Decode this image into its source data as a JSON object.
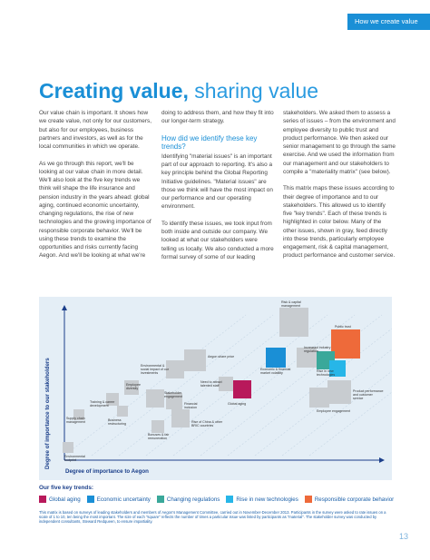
{
  "header": {
    "section": "How we create value"
  },
  "title": {
    "bold": "Creating value,",
    "light": "sharing value"
  },
  "col1": {
    "p1": "Our value chain is important. It shows how we create value, not only for our customers, but also for our employees, business partners and investors, as well as for the local communities in which we operate.",
    "p2": "As we go through this report, we'll be looking at our value chain in more detail. We'll also look at the five key trends we think will shape the life insurance and pension industry in the years ahead: global aging, continued economic uncertainty, changing regulations, the rise of new technologies and the growing importance of responsible corporate behavior. We'll be using these trends to examine the opportunities and risks currently facing Aegon. And we'll be looking at what we're"
  },
  "col2": {
    "p1": "doing to address them, and how they fit into our longer-term strategy.",
    "heading": "How did we identify these key trends?",
    "p2": "Identifying \"material issues\" is an important part of our approach to reporting. It's also a key principle behind the Global Reporting Initiative guidelines. \"Material issues\" are those we think will have the most impact on our performance and our operating environment.",
    "p3": "To identify these issues, we took input from both inside and outside our company. We looked at what our stakeholders were telling us locally. We also conducted a more formal survey of some of our leading"
  },
  "col3": {
    "p1": "stakeholders. We asked them to assess a series of issues – from the environment and employee diversity to public trust and product performance. We then asked our senior management to go through the same exercise. And we used the information from our management and our stakeholders to compile a \"materiality matrix\" (see below).",
    "p2": "This matrix maps these issues according to their degree of importance and to our stakeholders. This allowed us to identify five \"key trends\". Each of these trends is highlighted in color below. Many of the other issues, shown in gray, feed directly into these trends, particularly employee engagement, risk & capital management, product performance and customer service."
  },
  "matrix": {
    "y_axis_label": "Degree of importance to our stakeholders",
    "x_axis_label": "Degree of importance to Aegon",
    "labels": {
      "risk_capital": "Risk & capital management",
      "public_trust": "Public trust",
      "increased_regulation": "Increased industry regulation",
      "aegon_share_price": "Aegon share price",
      "economic_volatility": "Economic & financial market volatility",
      "rise_new_tech": "Rise in new technologies",
      "environmental_impact": "Environmental & social impact of our investments",
      "product_performance": "Product performance and customer service",
      "need_talent": "Need to attract talented staff",
      "employee_diversity": "Employee diversity",
      "stakeholder_engagement": "Stakeholder engagement",
      "training": "Training & career development",
      "financial_inclusion": "Financial inclusion",
      "global_aging": "Global aging",
      "employee_engagement": "Employee engagement",
      "business_restructuring": "Business restructuring",
      "supply_chain": "Supply chain management",
      "bric": "Rise of China & other BRIC countries",
      "bonuses": "Bonuses & fair remuneration",
      "env_footprint": "Environmental footprint"
    }
  },
  "legend": {
    "title": "Our five key trends:",
    "items": [
      {
        "label": "Global aging",
        "color": "#b8195b"
      },
      {
        "label": "Economic uncertainty",
        "color": "#1a8fd6"
      },
      {
        "label": "Changing regulations",
        "color": "#3aa89a"
      },
      {
        "label": "Rise in new technologies",
        "color": "#27b6e8"
      },
      {
        "label": "Responsible corporate behavior",
        "color": "#ee6a3a"
      }
    ]
  },
  "footnote": "This matrix is based on surveys of leading stakeholders and members of Aegon's Management Committee, carried out in November-December 2013. Participants in the survey were asked to rate issues on a scale of 1 to 10, ten being the most important. The size of each \"square\" reflects the number of times a particular issue was listed by participants as \"material\". The stakeholder survey was conducted by independent consultants, Steward Redqueen, to ensure impartiality.",
  "page_number": "13"
}
